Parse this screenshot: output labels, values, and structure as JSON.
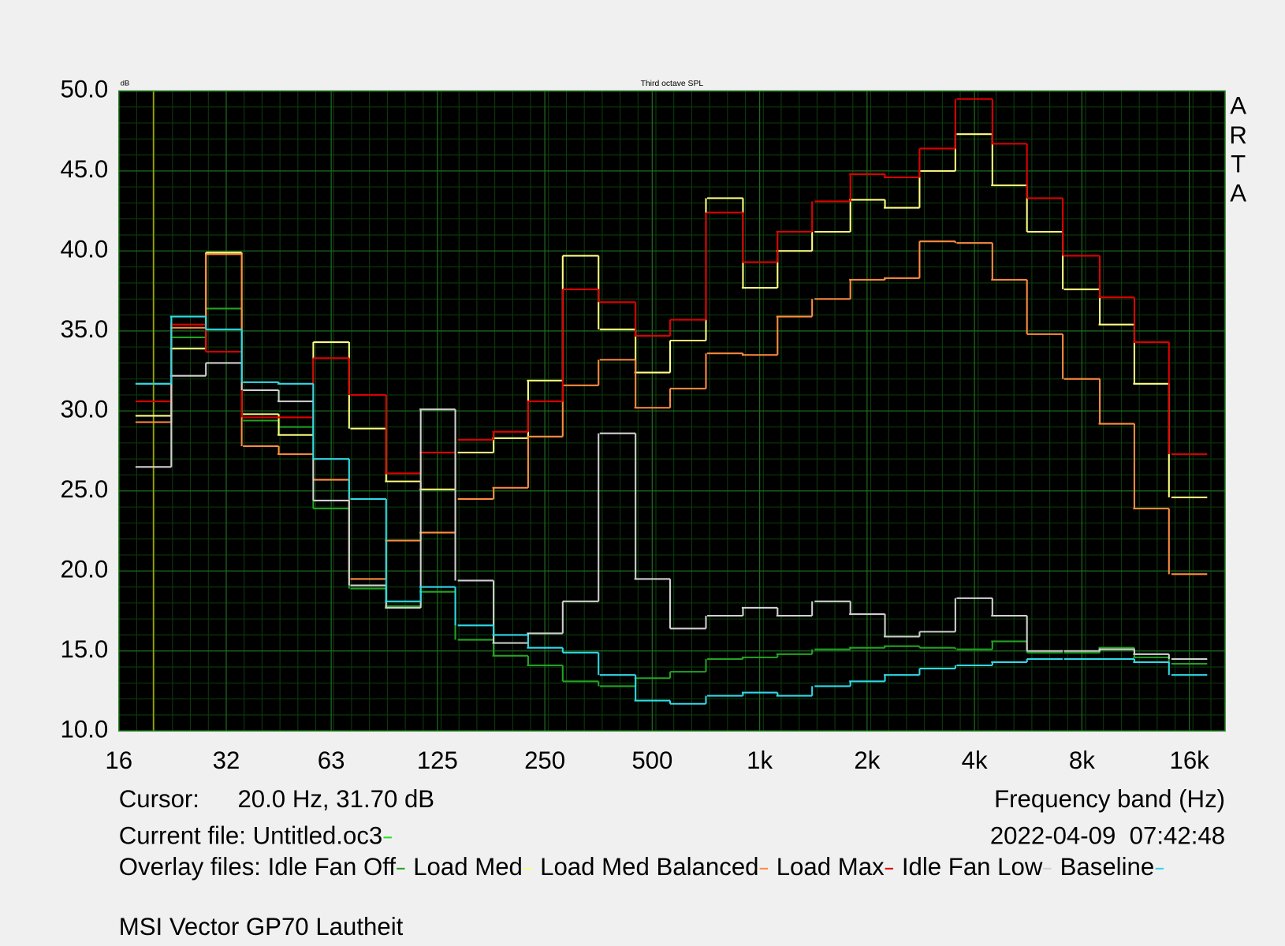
{
  "chart_data": {
    "type": "step",
    "title": "Third octave SPL",
    "y_unit": "dB",
    "x_label": "Frequency band (Hz)",
    "log_x": true,
    "grid": true,
    "x": [
      20,
      25,
      31.5,
      40,
      50,
      63,
      80,
      100,
      125,
      160,
      200,
      250,
      315,
      400,
      500,
      630,
      800,
      1000,
      1250,
      1600,
      2000,
      2500,
      3150,
      4000,
      5000,
      6300,
      8000,
      10000,
      12500,
      16000
    ],
    "xlim": [
      16,
      20160
    ],
    "ylim": [
      10,
      50
    ],
    "xticks": [
      16,
      32,
      63,
      125,
      250,
      500,
      {
        "value": 1000,
        "label": "1k"
      },
      {
        "value": 2000,
        "label": "2k"
      },
      {
        "value": 4000,
        "label": "4k"
      },
      {
        "value": 8000,
        "label": "8k"
      },
      {
        "value": 16000,
        "label": "16k"
      }
    ],
    "yticks": [
      {
        "value": 10,
        "label": "10.0"
      },
      {
        "value": 15,
        "label": "15.0"
      },
      {
        "value": 20,
        "label": "20.0"
      },
      {
        "value": 25,
        "label": "25.0"
      },
      {
        "value": 30,
        "label": "30.0"
      },
      {
        "value": 35,
        "label": "35.0"
      },
      {
        "value": 40,
        "label": "40.0"
      },
      {
        "value": 45,
        "label": "45.0"
      },
      {
        "value": 50,
        "label": "50.0"
      }
    ],
    "series": [
      {
        "name": "Idle Fan Off",
        "color": "#22a322",
        "values": [
          31.7,
          34.6,
          36.4,
          29.4,
          29.0,
          23.9,
          18.9,
          17.8,
          18.7,
          15.7,
          14.7,
          14.1,
          13.1,
          12.8,
          13.3,
          13.7,
          14.5,
          14.6,
          14.8,
          15.1,
          15.2,
          15.3,
          15.2,
          15.1,
          15.6,
          14.9,
          14.9,
          15.2,
          14.6,
          14.2
        ]
      },
      {
        "name": "Load Med",
        "color": "#ffff80",
        "values": [
          29.7,
          33.9,
          39.9,
          29.8,
          28.5,
          34.3,
          28.9,
          25.6,
          25.1,
          27.4,
          28.3,
          31.9,
          39.7,
          35.1,
          32.4,
          34.4,
          43.3,
          37.7,
          40.0,
          41.2,
          43.2,
          42.7,
          45.0,
          47.3,
          44.1,
          41.2,
          37.6,
          35.4,
          31.7,
          24.6
        ]
      },
      {
        "name": "Load Med Balanced",
        "color": "#ff8c40",
        "values": [
          29.3,
          35.2,
          39.8,
          27.8,
          27.3,
          25.7,
          19.5,
          21.9,
          22.4,
          24.5,
          25.2,
          28.4,
          31.6,
          33.2,
          30.2,
          31.4,
          33.6,
          33.5,
          35.9,
          37.0,
          38.2,
          38.3,
          40.6,
          40.5,
          38.2,
          34.8,
          32.0,
          29.2,
          23.9,
          19.8
        ]
      },
      {
        "name": "Load Max",
        "color": "#e00000",
        "values": [
          30.6,
          35.4,
          33.7,
          29.6,
          29.6,
          33.3,
          31.0,
          26.1,
          27.4,
          28.2,
          28.7,
          30.6,
          37.6,
          36.8,
          34.7,
          35.7,
          42.4,
          39.3,
          41.2,
          43.1,
          44.8,
          44.6,
          46.4,
          49.5,
          46.7,
          43.3,
          39.7,
          37.1,
          34.3,
          27.3
        ]
      },
      {
        "name": "Idle Fan Low",
        "color": "#d0d0d0",
        "values": [
          26.5,
          32.2,
          33.0,
          31.3,
          30.6,
          24.4,
          19.1,
          17.7,
          30.1,
          19.4,
          15.5,
          16.1,
          18.1,
          28.6,
          19.5,
          16.4,
          17.2,
          17.7,
          17.2,
          18.1,
          17.3,
          15.9,
          16.2,
          18.3,
          17.2,
          15.0,
          15.0,
          15.1,
          14.8,
          14.5
        ]
      },
      {
        "name": "Baseline",
        "color": "#30d8e8",
        "values": [
          31.7,
          35.9,
          35.1,
          31.8,
          31.7,
          27.0,
          24.5,
          18.1,
          19.0,
          16.6,
          16.0,
          15.2,
          14.9,
          13.5,
          11.9,
          11.7,
          12.2,
          12.4,
          12.2,
          12.8,
          13.1,
          13.5,
          13.9,
          14.1,
          14.3,
          14.5,
          14.5,
          14.5,
          14.3,
          13.5
        ]
      }
    ]
  },
  "brand": "ARTA",
  "cursor": {
    "label": "Cursor:",
    "readout": "20.0 Hz, 31.70 dB",
    "x": 20,
    "color": "#a8a800"
  },
  "current_file": {
    "label": "Current file: Untitled.oc3",
    "color": "#20e020"
  },
  "timestamp": "2022-04-09  07:42:48",
  "overlay_label": "Overlay files:",
  "footer_title": "MSI Vector GP70 Lautheit"
}
